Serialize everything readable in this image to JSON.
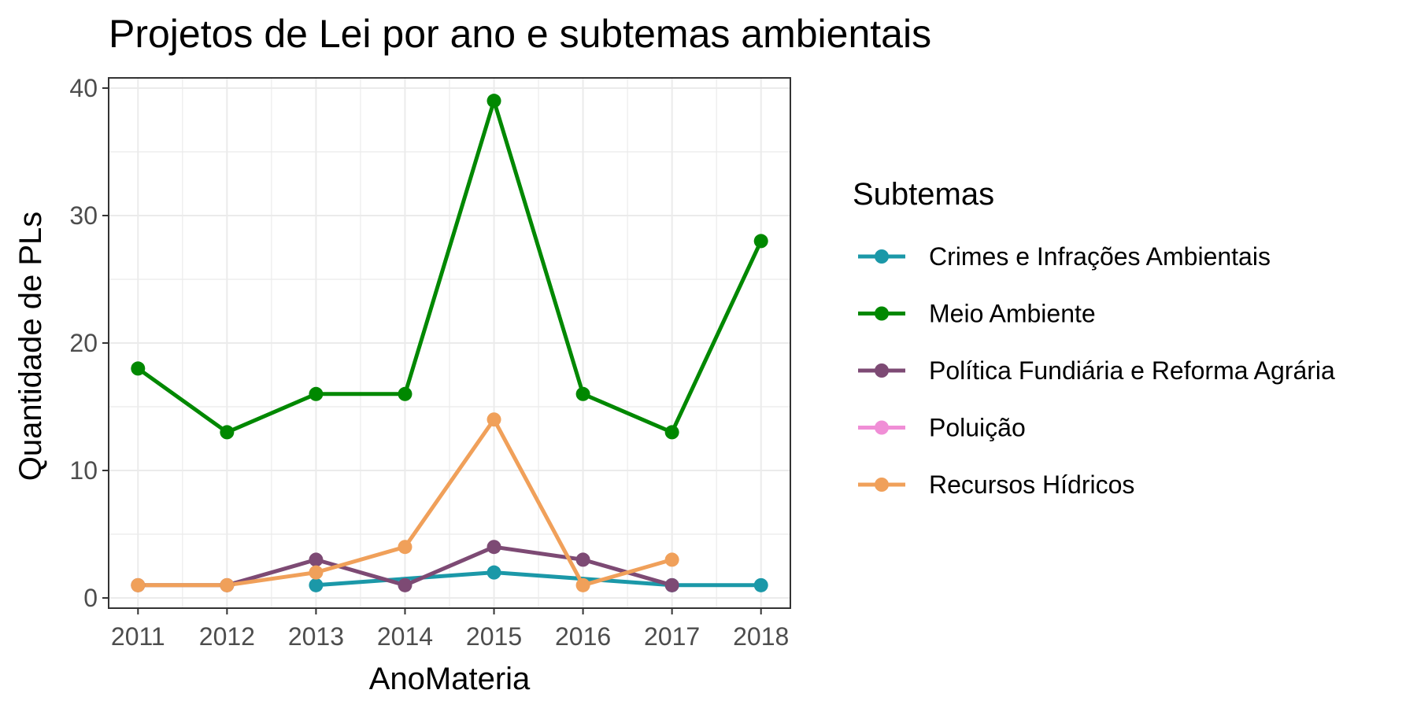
{
  "chart_data": {
    "type": "line",
    "title": "Projetos de Lei por ano e subtemas ambientais",
    "xlabel": "AnoMateria",
    "ylabel": "Quantidade de PLs",
    "xlim": [
      2010.67,
      2018.33
    ],
    "ylim": [
      -0.8,
      40.8
    ],
    "x_ticks": [
      2011,
      2012,
      2013,
      2014,
      2015,
      2016,
      2017,
      2018
    ],
    "y_ticks": [
      0,
      10,
      20,
      30,
      40
    ],
    "grid": true,
    "legend": {
      "title": "Subtemas",
      "position": "right"
    },
    "series": [
      {
        "name": "Crimes e Infrações Ambientais",
        "color": "#1b98a8",
        "points": [
          [
            2013,
            1
          ],
          [
            2015,
            2
          ],
          [
            2017,
            1
          ],
          [
            2018,
            1
          ]
        ]
      },
      {
        "name": "Meio Ambiente",
        "color": "#008800",
        "points": [
          [
            2011,
            18
          ],
          [
            2012,
            13
          ],
          [
            2013,
            16
          ],
          [
            2014,
            16
          ],
          [
            2015,
            39
          ],
          [
            2016,
            16
          ],
          [
            2017,
            13
          ],
          [
            2018,
            28
          ]
        ]
      },
      {
        "name": "Política Fundiária e Reforma Agrária",
        "color": "#7d4a74",
        "points": [
          [
            2011,
            1
          ],
          [
            2012,
            1
          ],
          [
            2013,
            3
          ],
          [
            2014,
            1
          ],
          [
            2015,
            4
          ],
          [
            2016,
            3
          ],
          [
            2017,
            1
          ]
        ]
      },
      {
        "name": "Poluição",
        "color": "#f08ed6",
        "points": []
      },
      {
        "name": "Recursos Hídricos",
        "color": "#f0a05a",
        "points": [
          [
            2011,
            1
          ],
          [
            2012,
            1
          ],
          [
            2013,
            2
          ],
          [
            2014,
            4
          ],
          [
            2015,
            14
          ],
          [
            2016,
            1
          ],
          [
            2017,
            3
          ]
        ]
      }
    ]
  }
}
